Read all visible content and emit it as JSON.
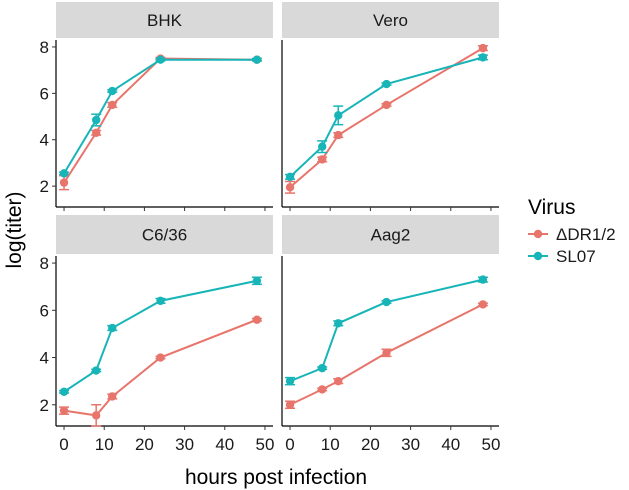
{
  "chart_data": {
    "type": "line",
    "facet_by": "cell line",
    "xlabel": "hours post infection",
    "ylabel": "log(titer)",
    "xlim": [
      -2,
      52
    ],
    "ylim": [
      1.1,
      8.3
    ],
    "xticks": [
      0,
      10,
      20,
      30,
      40,
      50
    ],
    "yticks": [
      2,
      4,
      6,
      8
    ],
    "x": [
      0,
      8,
      12,
      24,
      48
    ],
    "legend": {
      "title": "Virus",
      "position": "right",
      "entries": [
        "ΔDR1/2",
        "SL07"
      ]
    },
    "series_colors": {
      "ΔDR1/2": "#E8756C",
      "SL07": "#17B5B8"
    },
    "panels": [
      {
        "name": "BHK",
        "series": [
          {
            "name": "ΔDR1/2",
            "values": [
              2.15,
              4.3,
              5.5,
              7.5,
              7.45
            ],
            "errors": [
              0.3,
              0.1,
              0.1,
              0.05,
              0.05
            ]
          },
          {
            "name": "SL07",
            "values": [
              2.55,
              4.85,
              6.1,
              7.45,
              7.45
            ],
            "errors": [
              0.05,
              0.25,
              0.05,
              0.05,
              0.05
            ]
          }
        ]
      },
      {
        "name": "Vero",
        "series": [
          {
            "name": "ΔDR1/2",
            "values": [
              1.95,
              3.15,
              4.2,
              5.5,
              7.95
            ],
            "errors": [
              0.25,
              0.1,
              0.1,
              0.05,
              0.1
            ]
          },
          {
            "name": "SL07",
            "values": [
              2.4,
              3.7,
              5.05,
              6.4,
              7.55
            ],
            "errors": [
              0.1,
              0.25,
              0.4,
              0.05,
              0.1
            ]
          }
        ]
      },
      {
        "name": "C6/36",
        "series": [
          {
            "name": "ΔDR1/2",
            "values": [
              1.75,
              1.55,
              2.35,
              4.0,
              5.6
            ],
            "errors": [
              0.15,
              0.45,
              0.1,
              0.05,
              0.05
            ]
          },
          {
            "name": "SL07",
            "values": [
              2.55,
              3.45,
              5.25,
              6.4,
              7.25
            ],
            "errors": [
              0.05,
              0.05,
              0.1,
              0.1,
              0.15
            ]
          }
        ]
      },
      {
        "name": "Aag2",
        "series": [
          {
            "name": "ΔDR1/2",
            "values": [
              2.0,
              2.65,
              3.0,
              4.2,
              6.25
            ],
            "errors": [
              0.15,
              0.05,
              0.1,
              0.15,
              0.05
            ]
          },
          {
            "name": "SL07",
            "values": [
              3.0,
              3.55,
              5.45,
              6.35,
              7.3
            ],
            "errors": [
              0.15,
              0.05,
              0.1,
              0.05,
              0.1
            ]
          }
        ]
      }
    ]
  }
}
